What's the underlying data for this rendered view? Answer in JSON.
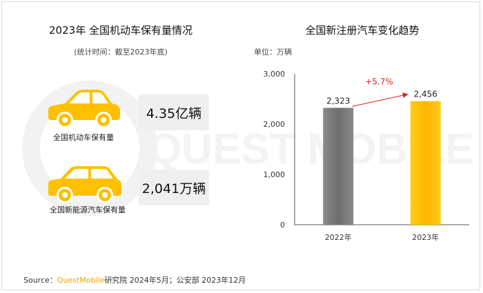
{
  "left_panel": {
    "title": "2023年 全国机动车保有量情况",
    "subtitle": "(统计时间：截至2023年底)",
    "items": [
      {
        "label": "全国机动车保有量",
        "value": "4.35亿辆",
        "icon": "sedan-car-icon"
      },
      {
        "label": "全国新能源汽车保有量",
        "value": "2,041万辆",
        "icon": "suv-car-icon"
      }
    ]
  },
  "chart_data": {
    "type": "bar",
    "title": "全国新注册汽车变化趋势",
    "unit_label": "单位：万辆",
    "categories": [
      "2022年",
      "2023年"
    ],
    "values": [
      2323,
      2456
    ],
    "value_labels": [
      "2,323",
      "2,456"
    ],
    "ylim": [
      0,
      3000
    ],
    "y_ticks": [
      0,
      1000,
      2000,
      3000
    ],
    "y_tick_labels": [
      "0",
      "1,000",
      "2,000",
      "3,000"
    ],
    "growth_annotation": "+5.7%",
    "grid": false,
    "bar_colors": [
      "#777777",
      "#ffc000"
    ]
  },
  "source": {
    "prefix": "Source：",
    "brand": "QuestMobile",
    "rest": "研究院 2024年5月；公安部 2023年12月"
  },
  "colors": {
    "accent": "#ffc000",
    "annotation": "#e02020"
  }
}
